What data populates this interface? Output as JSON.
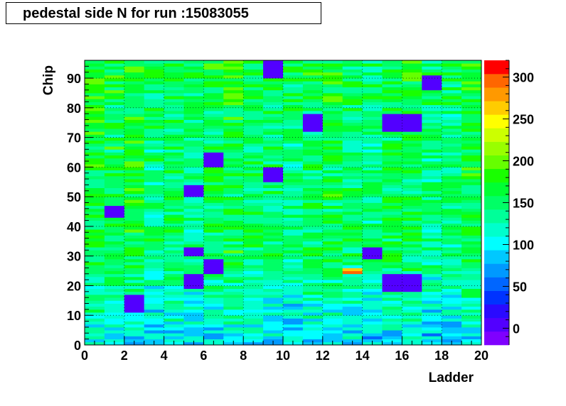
{
  "title": "pedestal side N for run :15083055",
  "chart_data": {
    "type": "heatmap",
    "xlabel": "Ladder",
    "ylabel": "Chip",
    "xlim": [
      0,
      20
    ],
    "ylim": [
      0,
      96
    ],
    "x_bins": 20,
    "y_bins": 96,
    "x_ticks": [
      "0",
      "2",
      "4",
      "6",
      "8",
      "10",
      "12",
      "14",
      "16",
      "18",
      "20"
    ],
    "y_ticks": [
      "0",
      "10",
      "20",
      "30",
      "40",
      "50",
      "60",
      "70",
      "80",
      "90"
    ],
    "z_range": [
      -20,
      320
    ],
    "z_ticks": [
      "0",
      "50",
      "100",
      "150",
      "200",
      "250",
      "300"
    ],
    "grid": true,
    "palette": [
      "#7f00ff",
      "#5200ff",
      "#2a0aff",
      "#0033ff",
      "#0066ff",
      "#0099ff",
      "#00c8ff",
      "#00ffff",
      "#00ffcc",
      "#00ff99",
      "#00ff66",
      "#00ff33",
      "#19ff00",
      "#66ff00",
      "#99ff00",
      "#ccff00",
      "#ffff00",
      "#ffcc00",
      "#ff9900",
      "#ff6600",
      "#ff0000"
    ],
    "values_note_default": 150,
    "low_blocks": [
      {
        "x": [
          9,
          10
        ],
        "y": [
          90,
          96
        ],
        "value": 10
      },
      {
        "x": [
          17,
          18
        ],
        "y": [
          86,
          91
        ],
        "value": 10
      },
      {
        "x": [
          11,
          12
        ],
        "y": [
          72,
          78
        ],
        "value": 10
      },
      {
        "x": [
          15,
          17
        ],
        "y": [
          72,
          78
        ],
        "value": 10
      },
      {
        "x": [
          6,
          7
        ],
        "y": [
          60,
          65
        ],
        "value": 10
      },
      {
        "x": [
          9,
          10
        ],
        "y": [
          55,
          60
        ],
        "value": 10
      },
      {
        "x": [
          5,
          6
        ],
        "y": [
          50,
          54
        ],
        "value": 10
      },
      {
        "x": [
          1,
          2
        ],
        "y": [
          43,
          47
        ],
        "value": 10
      },
      {
        "x": [
          6,
          7
        ],
        "y": [
          24,
          29
        ],
        "value": 10
      },
      {
        "x": [
          5,
          6
        ],
        "y": [
          19,
          24
        ],
        "value": 10
      },
      {
        "x": [
          15,
          17
        ],
        "y": [
          18,
          24
        ],
        "value": 10
      },
      {
        "x": [
          2,
          3
        ],
        "y": [
          11,
          17
        ],
        "value": 10
      },
      {
        "x": [
          14,
          15
        ],
        "y": [
          29,
          33
        ],
        "value": 10
      },
      {
        "x": [
          5,
          6
        ],
        "y": [
          30,
          33
        ],
        "value": 10
      }
    ],
    "hot_cells": [
      {
        "x": [
          13,
          14
        ],
        "y": [
          24,
          25
        ],
        "value": 300
      },
      {
        "x": [
          13,
          14
        ],
        "y": [
          25,
          26
        ],
        "value": 260
      }
    ]
  }
}
